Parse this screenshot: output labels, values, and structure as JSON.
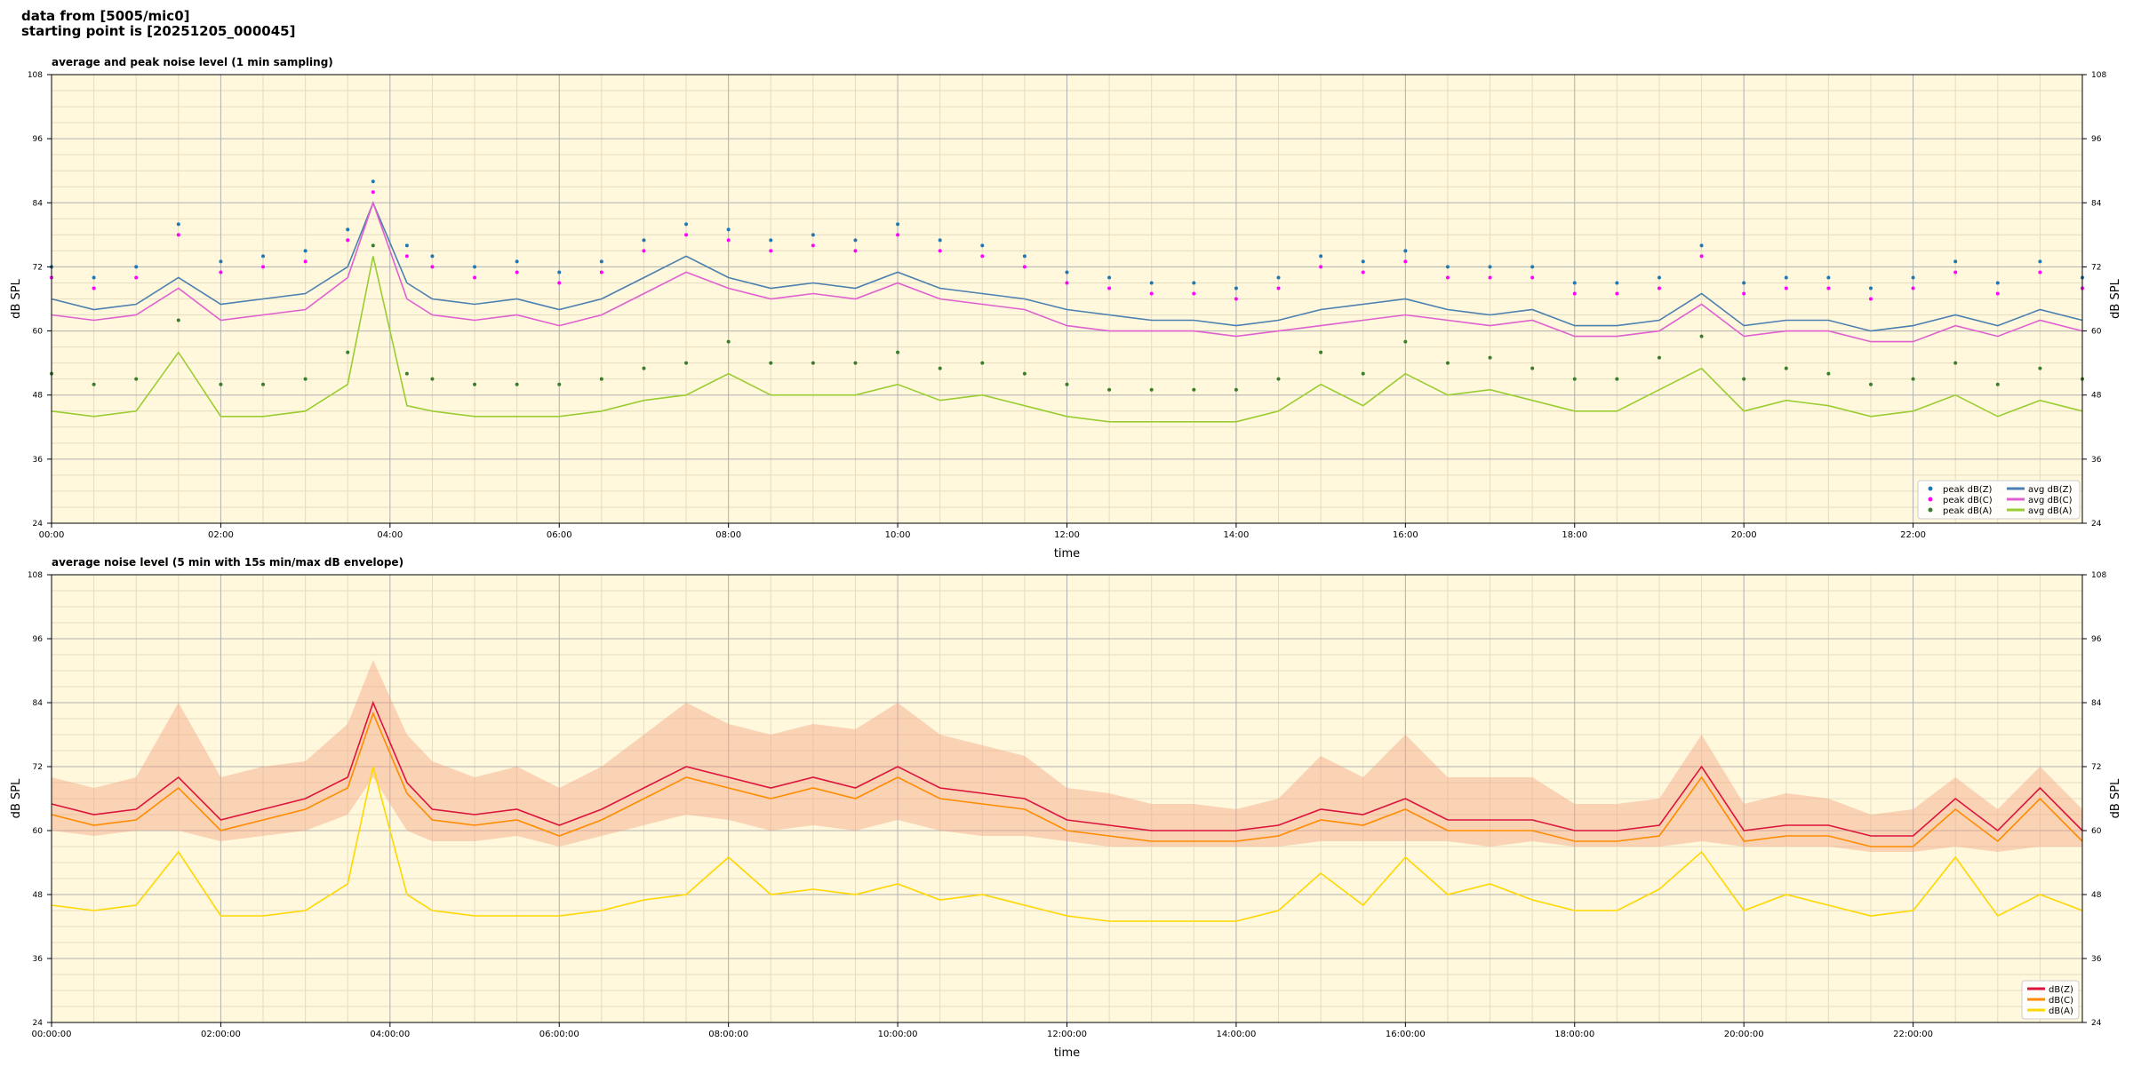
{
  "header": {
    "line1": "data from [5005/mic0]",
    "line2": "starting point is [20251205_000045]"
  },
  "colors": {
    "plot_bg": "#fff8dc",
    "grid_major": "#b0b0b0",
    "grid_minor": "#e6dcc0",
    "peak_z": "#1f77b4",
    "peak_c": "#ff00ff",
    "peak_a": "#3a7d2c",
    "avg_z": "#4a7fb0",
    "avg_c": "#e060d0",
    "avg_a": "#9acd32",
    "dbz": "#dc143c",
    "dbc": "#ff8c00",
    "dba": "#ffd700",
    "envelope": "#f4a582"
  },
  "chart_data": [
    {
      "type": "line",
      "title": "average and peak noise level (1 min sampling)",
      "xlabel": "time",
      "ylabel": "dB SPL",
      "ylim": [
        24,
        108
      ],
      "xlim": [
        0,
        24
      ],
      "grid": true,
      "legend_position": "bottom-right",
      "x_ticks": [
        "00:00",
        "02:00",
        "04:00",
        "06:00",
        "08:00",
        "10:00",
        "12:00",
        "14:00",
        "16:00",
        "18:00",
        "20:00",
        "22:00"
      ],
      "y_ticks": [
        "24",
        "36",
        "48",
        "60",
        "72",
        "84",
        "96",
        "108"
      ],
      "hours": [
        0,
        0.5,
        1,
        1.5,
        2,
        2.5,
        3,
        3.5,
        3.8,
        4.2,
        4.5,
        5,
        5.5,
        6,
        6.5,
        7,
        7.5,
        8,
        8.5,
        9,
        9.5,
        10,
        10.5,
        11,
        11.5,
        12,
        12.5,
        13,
        13.5,
        14,
        14.5,
        15,
        15.5,
        16,
        16.5,
        17,
        17.5,
        18,
        18.5,
        19,
        19.5,
        20,
        20.5,
        21,
        21.5,
        22,
        22.5,
        23,
        23.5,
        24
      ],
      "series": [
        {
          "name": "avg dB(Z)",
          "kind": "line",
          "color_key": "avg_z",
          "values": [
            66,
            64,
            65,
            70,
            65,
            66,
            67,
            72,
            84,
            69,
            66,
            65,
            66,
            64,
            66,
            70,
            74,
            70,
            68,
            69,
            68,
            71,
            68,
            67,
            66,
            64,
            63,
            62,
            62,
            61,
            62,
            64,
            65,
            66,
            64,
            63,
            64,
            61,
            61,
            62,
            67,
            61,
            62,
            62,
            60,
            61,
            63,
            61,
            64,
            62
          ]
        },
        {
          "name": "avg dB(C)",
          "kind": "line",
          "color_key": "avg_c",
          "values": [
            63,
            62,
            63,
            68,
            62,
            63,
            64,
            70,
            84,
            66,
            63,
            62,
            63,
            61,
            63,
            67,
            71,
            68,
            66,
            67,
            66,
            69,
            66,
            65,
            64,
            61,
            60,
            60,
            60,
            59,
            60,
            61,
            62,
            63,
            62,
            61,
            62,
            59,
            59,
            60,
            65,
            59,
            60,
            60,
            58,
            58,
            61,
            59,
            62,
            60
          ]
        },
        {
          "name": "avg dB(A)",
          "kind": "line",
          "color_key": "avg_a",
          "values": [
            45,
            44,
            45,
            56,
            44,
            44,
            45,
            50,
            74,
            46,
            45,
            44,
            44,
            44,
            45,
            47,
            48,
            52,
            48,
            48,
            48,
            50,
            47,
            48,
            46,
            44,
            43,
            43,
            43,
            43,
            45,
            50,
            46,
            52,
            48,
            49,
            47,
            45,
            45,
            49,
            53,
            45,
            47,
            46,
            44,
            45,
            48,
            44,
            47,
            45
          ]
        },
        {
          "name": "peak dB(Z)",
          "kind": "dots",
          "color_key": "peak_z",
          "values": [
            72,
            70,
            72,
            80,
            73,
            74,
            75,
            79,
            88,
            76,
            74,
            72,
            73,
            71,
            73,
            77,
            80,
            79,
            77,
            78,
            77,
            80,
            77,
            76,
            74,
            71,
            70,
            69,
            69,
            68,
            70,
            74,
            73,
            75,
            72,
            72,
            72,
            69,
            69,
            70,
            76,
            69,
            70,
            70,
            68,
            70,
            73,
            69,
            73,
            70
          ]
        },
        {
          "name": "peak dB(C)",
          "kind": "dots",
          "color_key": "peak_c",
          "values": [
            70,
            68,
            70,
            78,
            71,
            72,
            73,
            77,
            86,
            74,
            72,
            70,
            71,
            69,
            71,
            75,
            78,
            77,
            75,
            76,
            75,
            78,
            75,
            74,
            72,
            69,
            68,
            67,
            67,
            66,
            68,
            72,
            71,
            73,
            70,
            70,
            70,
            67,
            67,
            68,
            74,
            67,
            68,
            68,
            66,
            68,
            71,
            67,
            71,
            68
          ]
        },
        {
          "name": "peak dB(A)",
          "kind": "dots",
          "color_key": "peak_a",
          "values": [
            52,
            50,
            51,
            62,
            50,
            50,
            51,
            56,
            76,
            52,
            51,
            50,
            50,
            50,
            51,
            53,
            54,
            58,
            54,
            54,
            54,
            56,
            53,
            54,
            52,
            50,
            49,
            49,
            49,
            49,
            51,
            56,
            52,
            58,
            54,
            55,
            53,
            51,
            51,
            55,
            59,
            51,
            53,
            52,
            50,
            51,
            54,
            50,
            53,
            51
          ]
        }
      ]
    },
    {
      "type": "line",
      "title": "average noise level (5 min with 15s min/max dB envelope)",
      "xlabel": "time",
      "ylabel": "dB SPL",
      "ylim": [
        24,
        108
      ],
      "xlim": [
        0,
        24
      ],
      "grid": true,
      "legend_position": "bottom-right",
      "x_ticks": [
        "00:00:00",
        "02:00:00",
        "04:00:00",
        "06:00:00",
        "08:00:00",
        "10:00:00",
        "12:00:00",
        "14:00:00",
        "16:00:00",
        "18:00:00",
        "20:00:00",
        "22:00:00"
      ],
      "y_ticks": [
        "24",
        "36",
        "48",
        "60",
        "72",
        "84",
        "96",
        "108"
      ],
      "hours": [
        0,
        0.5,
        1,
        1.5,
        2,
        2.5,
        3,
        3.5,
        3.8,
        4.2,
        4.5,
        5,
        5.5,
        6,
        6.5,
        7,
        7.5,
        8,
        8.5,
        9,
        9.5,
        10,
        10.5,
        11,
        11.5,
        12,
        12.5,
        13,
        13.5,
        14,
        14.5,
        15,
        15.5,
        16,
        16.5,
        17,
        17.5,
        18,
        18.5,
        19,
        19.5,
        20,
        20.5,
        21,
        21.5,
        22,
        22.5,
        23,
        23.5,
        24
      ],
      "envelope": {
        "color_key": "envelope",
        "max": [
          70,
          68,
          70,
          84,
          70,
          72,
          73,
          80,
          92,
          78,
          73,
          70,
          72,
          68,
          72,
          78,
          84,
          80,
          78,
          80,
          79,
          84,
          78,
          76,
          74,
          68,
          67,
          65,
          65,
          64,
          66,
          74,
          70,
          78,
          70,
          70,
          70,
          65,
          65,
          66,
          78,
          65,
          67,
          66,
          63,
          64,
          70,
          64,
          72,
          64
        ],
        "min": [
          60,
          59,
          60,
          60,
          58,
          59,
          60,
          63,
          70,
          60,
          58,
          58,
          59,
          57,
          59,
          61,
          63,
          62,
          60,
          61,
          60,
          62,
          60,
          59,
          59,
          58,
          57,
          57,
          57,
          57,
          57,
          58,
          58,
          58,
          58,
          57,
          58,
          57,
          57,
          57,
          58,
          57,
          57,
          57,
          56,
          56,
          57,
          56,
          57,
          57
        ]
      },
      "series": [
        {
          "name": "dB(Z)",
          "kind": "line",
          "color_key": "dbz",
          "values": [
            65,
            63,
            64,
            70,
            62,
            64,
            66,
            70,
            84,
            69,
            64,
            63,
            64,
            61,
            64,
            68,
            72,
            70,
            68,
            70,
            68,
            72,
            68,
            67,
            66,
            62,
            61,
            60,
            60,
            60,
            61,
            64,
            63,
            66,
            62,
            62,
            62,
            60,
            60,
            61,
            72,
            60,
            61,
            61,
            59,
            59,
            66,
            60,
            68,
            60
          ]
        },
        {
          "name": "dB(C)",
          "kind": "line",
          "color_key": "dbc",
          "values": [
            63,
            61,
            62,
            68,
            60,
            62,
            64,
            68,
            82,
            67,
            62,
            61,
            62,
            59,
            62,
            66,
            70,
            68,
            66,
            68,
            66,
            70,
            66,
            65,
            64,
            60,
            59,
            58,
            58,
            58,
            59,
            62,
            61,
            64,
            60,
            60,
            60,
            58,
            58,
            59,
            70,
            58,
            59,
            59,
            57,
            57,
            64,
            58,
            66,
            58
          ]
        },
        {
          "name": "dB(A)",
          "kind": "line",
          "color_key": "dba",
          "values": [
            46,
            45,
            46,
            56,
            44,
            44,
            45,
            50,
            72,
            48,
            45,
            44,
            44,
            44,
            45,
            47,
            48,
            55,
            48,
            49,
            48,
            50,
            47,
            48,
            46,
            44,
            43,
            43,
            43,
            43,
            45,
            52,
            46,
            55,
            48,
            50,
            47,
            45,
            45,
            49,
            56,
            45,
            48,
            46,
            44,
            45,
            55,
            44,
            48,
            45
          ]
        }
      ]
    }
  ]
}
